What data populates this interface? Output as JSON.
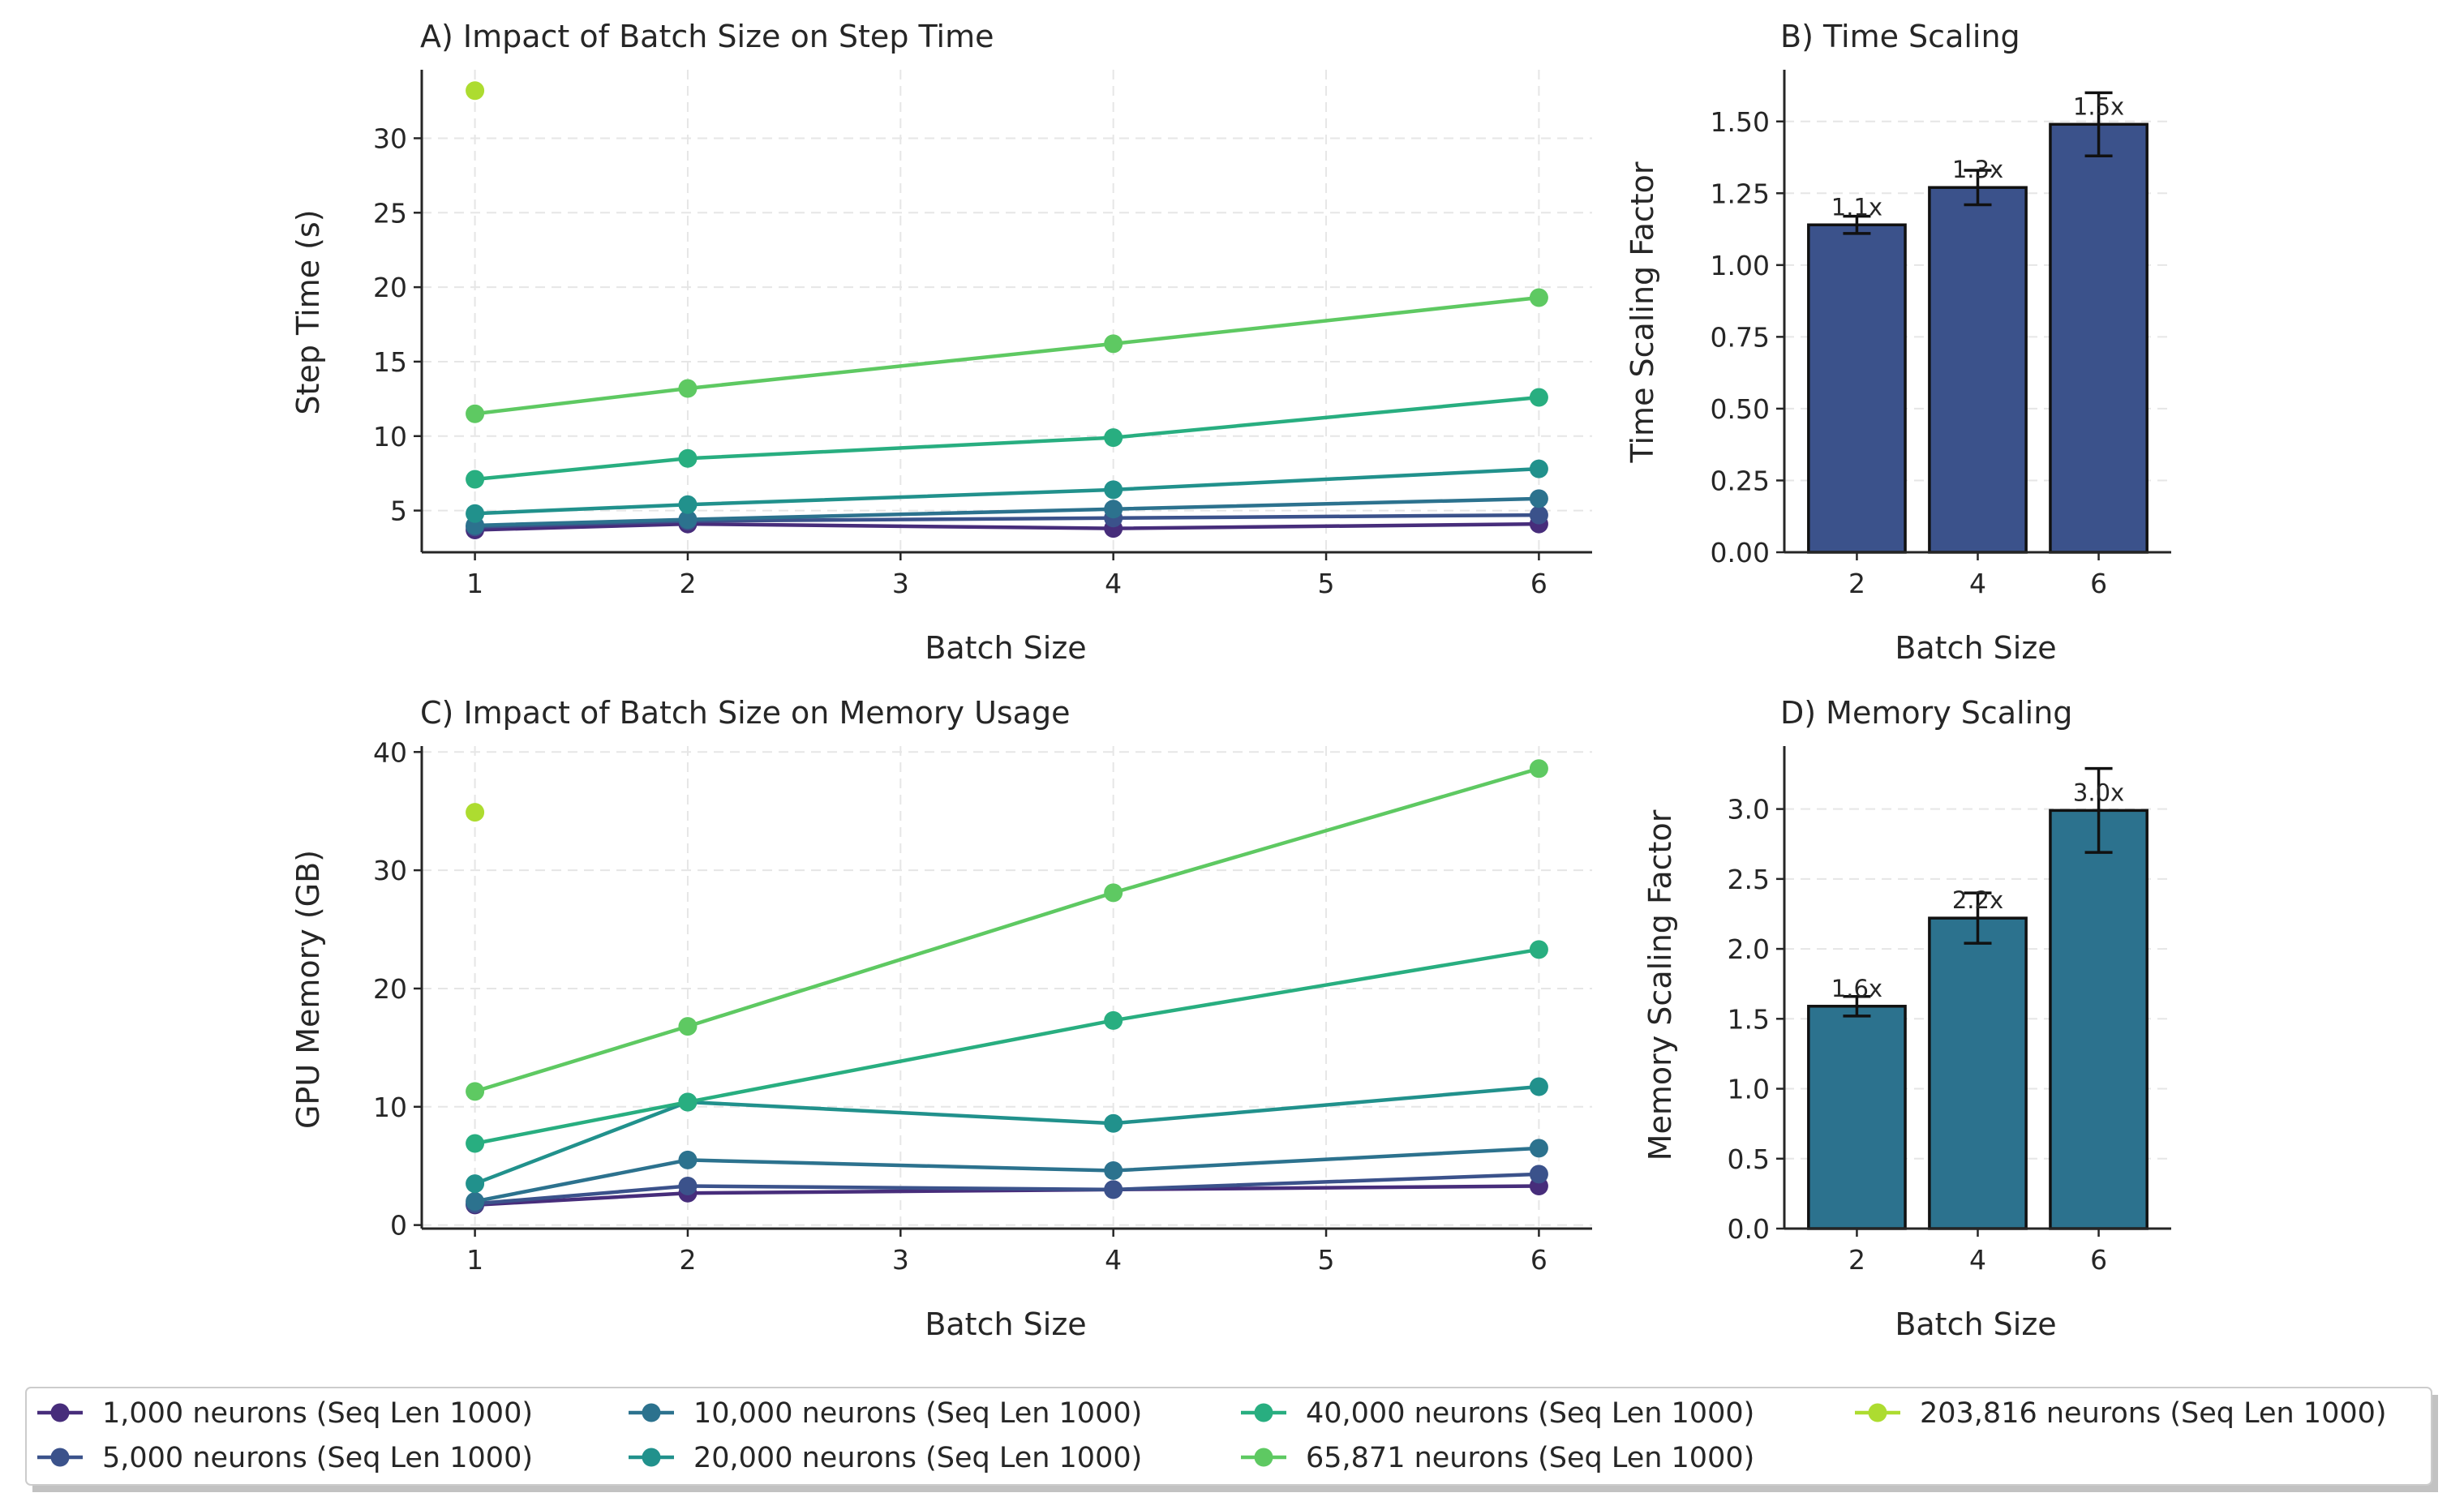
{
  "colors": {
    "series": [
      "#472d7b",
      "#3b528b",
      "#2c728e",
      "#21918c",
      "#28ae80",
      "#5ec962",
      "#addc30"
    ],
    "bar_time": "#3b528b",
    "bar_memory": "#2c728e",
    "grid": "#e6e6e6",
    "axis": "#262626"
  },
  "legend": {
    "entries": [
      "1,000 neurons (Seq Len 1000)",
      "5,000 neurons (Seq Len 1000)",
      "10,000 neurons (Seq Len 1000)",
      "20,000 neurons (Seq Len 1000)",
      "40,000 neurons (Seq Len 1000)",
      "65,871 neurons (Seq Len 1000)",
      "203,816 neurons (Seq Len 1000)"
    ],
    "placement": "bottom, 4 columns"
  },
  "chart_data": [
    {
      "type": "line",
      "title": "A) Impact of Batch Size on Step Time",
      "xlabel": "Batch Size",
      "ylabel": "Step Time (s)",
      "xlim": [
        0.75,
        6.25
      ],
      "ylim": [
        2.2,
        34.6
      ],
      "xticks": [
        "1",
        "2",
        "3",
        "4",
        "5",
        "6"
      ],
      "yticks": [
        "5",
        "10",
        "15",
        "20",
        "25",
        "30"
      ],
      "grid": true,
      "series": [
        {
          "name": "1,000 neurons (Seq Len 1000)",
          "x": [
            1,
            2,
            4,
            6
          ],
          "y": [
            3.7,
            4.1,
            3.8,
            4.1
          ]
        },
        {
          "name": "5,000 neurons (Seq Len 1000)",
          "x": [
            1,
            2,
            4,
            6
          ],
          "y": [
            3.9,
            4.3,
            4.5,
            4.7
          ]
        },
        {
          "name": "10,000 neurons (Seq Len 1000)",
          "x": [
            1,
            2,
            4,
            6
          ],
          "y": [
            4.0,
            4.4,
            5.1,
            5.8
          ]
        },
        {
          "name": "20,000 neurons (Seq Len 1000)",
          "x": [
            1,
            2,
            4,
            6
          ],
          "y": [
            4.8,
            5.4,
            6.4,
            7.8
          ]
        },
        {
          "name": "40,000 neurons (Seq Len 1000)",
          "x": [
            1,
            2,
            4,
            6
          ],
          "y": [
            7.1,
            8.5,
            9.9,
            12.6
          ]
        },
        {
          "name": "65,871 neurons (Seq Len 1000)",
          "x": [
            1,
            2,
            4,
            6
          ],
          "y": [
            11.5,
            13.2,
            16.2,
            19.3
          ]
        },
        {
          "name": "203,816 neurons (Seq Len 1000)",
          "x": [
            1
          ],
          "y": [
            33.2
          ]
        }
      ]
    },
    {
      "type": "bar",
      "title": "B) Time Scaling",
      "xlabel": "Batch Size",
      "ylabel": "Time Scaling Factor",
      "categories": [
        "2",
        "4",
        "6"
      ],
      "values": [
        1.14,
        1.27,
        1.49
      ],
      "errors": [
        0.03,
        0.06,
        0.11
      ],
      "labels": [
        "1.1x",
        "1.3x",
        "1.5x"
      ],
      "ylim": [
        0,
        1.68
      ],
      "yticks": [
        "0.00",
        "0.25",
        "0.50",
        "0.75",
        "1.00",
        "1.25",
        "1.50"
      ],
      "grid": true
    },
    {
      "type": "line",
      "title": "C) Impact of Batch Size on Memory Usage",
      "xlabel": "Batch Size",
      "ylabel": "GPU Memory (GB)",
      "xlim": [
        0.75,
        6.25
      ],
      "ylim": [
        -0.3,
        40.5
      ],
      "xticks": [
        "1",
        "2",
        "3",
        "4",
        "5",
        "6"
      ],
      "yticks": [
        "0",
        "10",
        "20",
        "30",
        "40"
      ],
      "grid": true,
      "series": [
        {
          "name": "1,000 neurons (Seq Len 1000)",
          "x": [
            1,
            2,
            4,
            6
          ],
          "y": [
            1.7,
            2.7,
            3.0,
            3.3
          ]
        },
        {
          "name": "5,000 neurons (Seq Len 1000)",
          "x": [
            1,
            2,
            4,
            6
          ],
          "y": [
            1.8,
            3.3,
            3.0,
            4.3
          ]
        },
        {
          "name": "10,000 neurons (Seq Len 1000)",
          "x": [
            1,
            2,
            4,
            6
          ],
          "y": [
            2.0,
            5.5,
            4.6,
            6.5
          ]
        },
        {
          "name": "20,000 neurons (Seq Len 1000)",
          "x": [
            1,
            2,
            4,
            6
          ],
          "y": [
            3.5,
            10.4,
            8.6,
            11.7
          ]
        },
        {
          "name": "40,000 neurons (Seq Len 1000)",
          "x": [
            1,
            2,
            4,
            6
          ],
          "y": [
            6.9,
            10.4,
            17.3,
            23.3
          ]
        },
        {
          "name": "65,871 neurons (Seq Len 1000)",
          "x": [
            1,
            2,
            4,
            6
          ],
          "y": [
            11.3,
            16.8,
            28.1,
            38.6
          ]
        },
        {
          "name": "203,816 neurons (Seq Len 1000)",
          "x": [
            1
          ],
          "y": [
            34.9
          ]
        }
      ]
    },
    {
      "type": "bar",
      "title": "D) Memory Scaling",
      "xlabel": "Batch Size",
      "ylabel": "Memory Scaling Factor",
      "categories": [
        "2",
        "4",
        "6"
      ],
      "values": [
        1.59,
        2.22,
        2.99
      ],
      "errors": [
        0.07,
        0.18,
        0.3
      ],
      "labels": [
        "1.6x",
        "2.2x",
        "3.0x"
      ],
      "ylim": [
        0,
        3.45
      ],
      "yticks": [
        "0.0",
        "0.5",
        "1.0",
        "1.5",
        "2.0",
        "2.5",
        "3.0"
      ],
      "grid": true
    }
  ]
}
